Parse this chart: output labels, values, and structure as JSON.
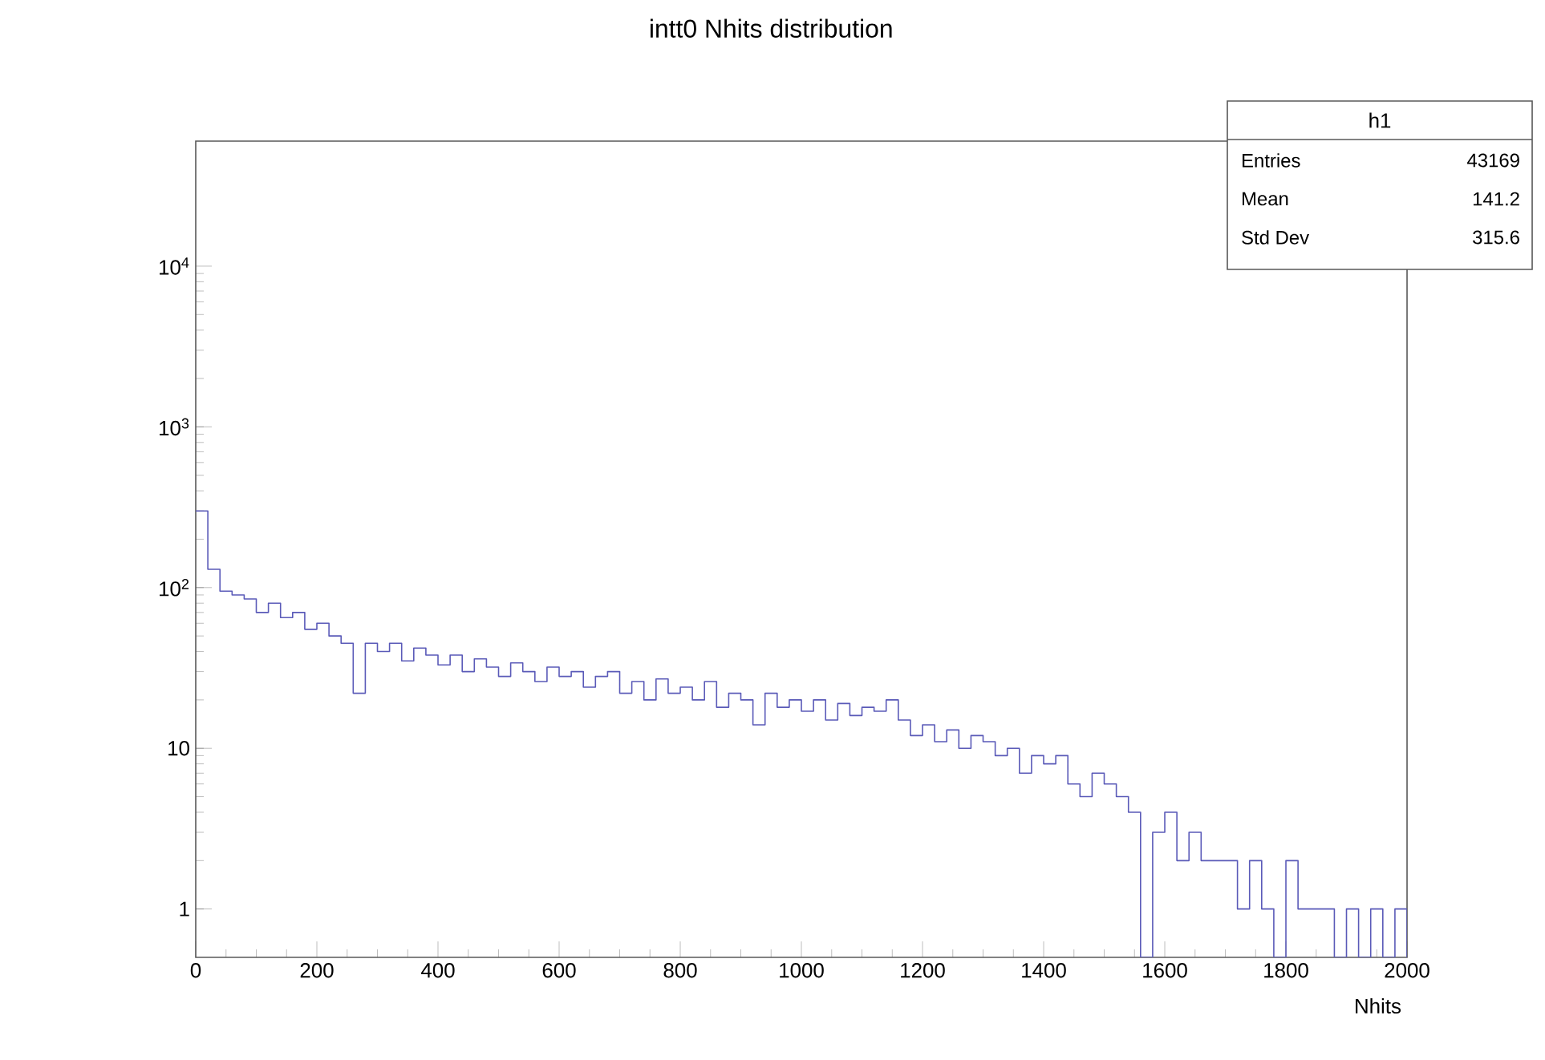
{
  "chart_data": {
    "type": "histogram",
    "title": "intt0 Nhits distribution",
    "xlabel": "Nhits",
    "bins": [
      0,
      20,
      40,
      60,
      80,
      100,
      120,
      140,
      160,
      180,
      200,
      220,
      240,
      260,
      280,
      300,
      320,
      340,
      360,
      380,
      400,
      420,
      440,
      460,
      480,
      500,
      520,
      540,
      560,
      580,
      600,
      620,
      640,
      660,
      680,
      700,
      720,
      740,
      760,
      780,
      800,
      820,
      840,
      860,
      880,
      900,
      920,
      940,
      960,
      980,
      1000,
      1020,
      1040,
      1060,
      1080,
      1100,
      1120,
      1140,
      1160,
      1180,
      1200,
      1220,
      1240,
      1260,
      1280,
      1300,
      1320,
      1340,
      1360,
      1380,
      1400,
      1420,
      1440,
      1460,
      1480,
      1500,
      1520,
      1540,
      1560,
      1580,
      1600,
      1620,
      1640,
      1660,
      1680,
      1700,
      1720,
      1740,
      1760,
      1780,
      1800,
      1820,
      1840,
      1860,
      1880,
      1900,
      1920,
      1940,
      1960,
      1980,
      2000
    ],
    "values": [
      300,
      130,
      95,
      90,
      85,
      70,
      80,
      65,
      70,
      55,
      60,
      50,
      45,
      22,
      45,
      40,
      45,
      35,
      42,
      38,
      33,
      38,
      30,
      36,
      32,
      28,
      34,
      30,
      26,
      32,
      28,
      30,
      24,
      28,
      30,
      22,
      26,
      20,
      27,
      22,
      24,
      20,
      26,
      18,
      22,
      20,
      14,
      22,
      18,
      20,
      17,
      20,
      15,
      19,
      16,
      18,
      17,
      20,
      15,
      12,
      14,
      11,
      13,
      10,
      12,
      11,
      9,
      10,
      7,
      9,
      8,
      9,
      6,
      5,
      7,
      6,
      5,
      4,
      null,
      3,
      4,
      2,
      3,
      2,
      2,
      2,
      1,
      2,
      1,
      null,
      2,
      1,
      1,
      1,
      null,
      1,
      null,
      1,
      null,
      1
    ],
    "color": "#5a5ab8",
    "log": true,
    "xlim": [
      0,
      2000
    ],
    "xticks": [
      0,
      200,
      400,
      600,
      800,
      1000,
      1200,
      1400,
      1600,
      1800,
      2000
    ],
    "ylim": [
      0.5,
      60000
    ],
    "yticks": [
      1,
      10,
      {
        "value": 100,
        "label": "10$^{2}$"
      },
      {
        "value": 1000,
        "label": "10$^{3}$"
      },
      {
        "value": 10000,
        "label": "10$^{4}$"
      }
    ],
    "annotations": [
      "h1",
      "Entries",
      "43169",
      "Mean",
      "141.2",
      "Std Dev",
      "315.6"
    ]
  }
}
